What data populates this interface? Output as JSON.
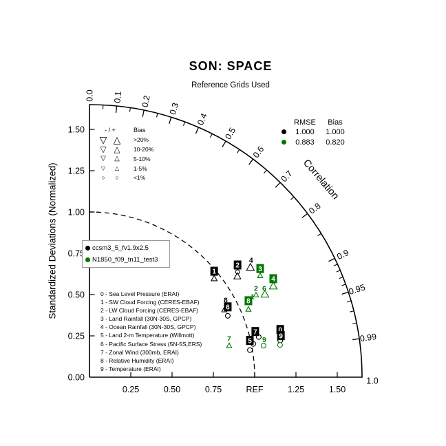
{
  "title": "SON: SPACE",
  "subtitle": "Reference Grids Used",
  "axes": {
    "y_label": "Standardized Deviations (Normalized)",
    "y_ticks": [
      {
        "v": 0.0,
        "t": "0.00"
      },
      {
        "v": 0.25,
        "t": "0.25"
      },
      {
        "v": 0.5,
        "t": "0.50"
      },
      {
        "v": 0.75,
        "t": "0.75"
      },
      {
        "v": 1.0,
        "t": "1.00"
      },
      {
        "v": 1.25,
        "t": "1.25"
      },
      {
        "v": 1.5,
        "t": "1.50"
      }
    ],
    "x_ticks": [
      {
        "v": 0.25,
        "t": "0.25"
      },
      {
        "v": 0.5,
        "t": "0.50"
      },
      {
        "v": 0.75,
        "t": "0.75"
      },
      {
        "v": 1.0,
        "t": "REF"
      },
      {
        "v": 1.25,
        "t": "1.25"
      },
      {
        "v": 1.5,
        "t": "1.50"
      }
    ],
    "corr_axis_label": "Correlation",
    "corr_labels": [
      {
        "r": 0.0,
        "t": "0.0"
      },
      {
        "r": 0.1,
        "t": "0.1"
      },
      {
        "r": 0.2,
        "t": "0.2"
      },
      {
        "r": 0.3,
        "t": "0.3"
      },
      {
        "r": 0.4,
        "t": "0.4"
      },
      {
        "r": 0.5,
        "t": "0.5"
      },
      {
        "r": 0.6,
        "t": "0.6"
      },
      {
        "r": 0.7,
        "t": "0.7"
      },
      {
        "r": 0.8,
        "t": "0.8"
      },
      {
        "r": 0.9,
        "t": "0.9"
      },
      {
        "r": 0.95,
        "t": "0.95"
      },
      {
        "r": 0.99,
        "t": "0.99"
      },
      {
        "r": 1.0,
        "t": "1.0"
      }
    ],
    "corr_ticks_major": [
      0.1,
      0.2,
      0.3,
      0.4,
      0.5,
      0.6,
      0.7,
      0.8,
      0.9,
      0.95,
      0.99
    ],
    "corr_ticks_minor": [
      0.05,
      0.15,
      0.25,
      0.35,
      0.45,
      0.55,
      0.65,
      0.75,
      0.85,
      0.91,
      0.92,
      0.93,
      0.94,
      0.96,
      0.97,
      0.98
    ]
  },
  "bias_legend": {
    "sign_header": "- / +",
    "bias_header": "Bias",
    "rows": [
      {
        "minus": "▽",
        "plus": "△",
        "label": ">20%"
      },
      {
        "minus": "▽",
        "plus": "△",
        "label": "10-20%"
      },
      {
        "minus": "▽",
        "plus": "△",
        "label": "5-10%"
      },
      {
        "minus": "▽",
        "plus": "△",
        "label": "1-5%"
      },
      {
        "minus": "○",
        "plus": "○",
        "label": "<1%"
      }
    ]
  },
  "stats_legend": {
    "headers": [
      "RMSE",
      "Bias"
    ]
  },
  "variables": [
    "0 - Sea Level Pressure (ERAI)",
    "1 - SW Cloud Forcing (CERES-EBAF)",
    "2 - LW Cloud Forcing (CERES-EBAF)",
    "3 - Land Rainfall (30N-30S, GPCP)",
    "4 - Ocean Rainfall (30N-30S, GPCP)",
    "5 - Land 2-m Temperature (Willmott)",
    "6 - Pacific Surface Stress (5N-5S,ERS)",
    "7 - Zonal Wind (300mb, ERAI)",
    "8 - Relative Humidity (ERAI)",
    "9 - Temperature (ERAI)"
  ],
  "chart_data": {
    "type": "taylor",
    "title": "SON: SPACE",
    "std_axis_max": 1.65,
    "ref_std": 1.0,
    "grid": false,
    "series": [
      {
        "name": "ccsm3_5_fv1.9x2.5",
        "color": "#000000",
        "rmse": "1.000",
        "bias": "1.000",
        "points": [
          {
            "id": "1",
            "std": 0.964,
            "corr": 0.783,
            "marker": "triangle",
            "ms": 7,
            "label": "box",
            "ldx": 0,
            "ldy": -10
          },
          {
            "id": "2",
            "std": 1.1,
            "corr": 0.815,
            "marker": "circle",
            "ms": 6,
            "label": "box",
            "ldx": 0,
            "ldy": -10
          },
          {
            "id": "3",
            "std": 1.085,
            "corr": 0.825,
            "marker": "triangle",
            "ms": 8,
            "label": "none"
          },
          {
            "id": "4",
            "std": 1.181,
            "corr": 0.825,
            "marker": "triangle",
            "ms": 9,
            "label": "plain",
            "ldx": 1,
            "ldy": -10
          },
          {
            "id": "8",
            "std": 0.913,
            "corr": 0.894,
            "marker": "triangle",
            "ms": 6,
            "label": "plain",
            "ldx": 2,
            "ldy": -14
          },
          {
            "id": "6",
            "std": 0.916,
            "corr": 0.914,
            "marker": "circle",
            "ms": 7,
            "label": "box",
            "ldx": 0,
            "ldy": -13
          },
          {
            "id": "7",
            "std": 1.053,
            "corr": 0.973,
            "marker": "circle",
            "ms": 7,
            "label": "box",
            "ldx": -5,
            "ldy": -8
          },
          {
            "id": "5",
            "std": 1.012,
            "corr": 0.98,
            "marker": "circle",
            "ms": 7,
            "label": "box",
            "ldx": -5,
            "ldy": -5
          },
          {
            "id": "",
            "std": 0.985,
            "corr": 0.986,
            "marker": "circle",
            "ms": 7,
            "label": "none"
          },
          {
            "id": "0",
            "std": 1.176,
            "corr": 0.982,
            "marker": "circle",
            "ms": 7,
            "label": "box",
            "ldx": 0,
            "ldy": -16
          },
          {
            "id": "9",
            "std": 1.176,
            "corr": 0.982,
            "marker": "none",
            "ms": 0,
            "label": "box",
            "ldx": 1,
            "ldy": -7
          }
        ]
      },
      {
        "name": "N1850_f09_tn11_test3",
        "color": "#007700",
        "rmse": "0.883",
        "bias": "0.820",
        "points": [
          {
            "id": "3",
            "std": 1.203,
            "corr": 0.859,
            "marker": "triangle",
            "ms": 6,
            "label": "box",
            "ldx": 0,
            "ldy": -10
          },
          {
            "id": "4",
            "std": 1.243,
            "corr": 0.895,
            "marker": "triangle",
            "ms": 9,
            "label": "box",
            "ldx": 0,
            "ldy": -10
          },
          {
            "id": "2",
            "std": 1.125,
            "corr": 0.896,
            "marker": "triangle",
            "ms": 6,
            "label": "plain",
            "ldx": 0,
            "ldy": -9
          },
          {
            "id": "6",
            "std": 1.176,
            "corr": 0.903,
            "marker": "triangle",
            "ms": 9,
            "label": "plain",
            "ldx": -1,
            "ldy": -8
          },
          {
            "id": "1",
            "std": 1.083,
            "corr": 0.911,
            "marker": "none",
            "ms": 0,
            "label": "plain",
            "ldx": 0,
            "ldy": -10
          },
          {
            "id": "8",
            "std": 1.047,
            "corr": 0.919,
            "marker": "triangle",
            "ms": 6,
            "label": "box",
            "ldx": 0,
            "ldy": -12
          },
          {
            "id": "7",
            "std": 0.867,
            "corr": 0.975,
            "marker": "triangle",
            "ms": 6,
            "label": "plain",
            "ldx": 0,
            "ldy": -10
          },
          {
            "id": "9",
            "std": 1.071,
            "corr": 0.984,
            "marker": "circle",
            "ms": 7,
            "label": "plain",
            "ldx": 1,
            "ldy": -9
          },
          {
            "id": "0",
            "std": 1.17,
            "corr": 0.986,
            "marker": "circle",
            "ms": 7,
            "label": "none"
          }
        ]
      }
    ]
  }
}
